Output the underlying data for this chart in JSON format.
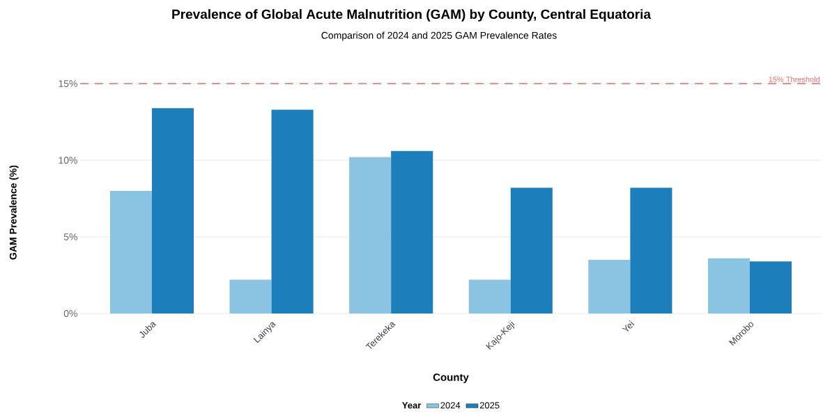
{
  "chart_data": {
    "type": "bar",
    "title": "Prevalence of Global Acute Malnutrition (GAM) by County, Central Equatoria",
    "subtitle": "Comparison of 2024 and 2025 GAM Prevalence Rates",
    "xlabel": "County",
    "ylabel": "GAM Prevalence (%)",
    "legend_title": "Year",
    "categories": [
      "Juba",
      "Lainya",
      "Terekeka",
      "Kajo-Keji",
      "Yei",
      "Morobo"
    ],
    "series": [
      {
        "name": "2024",
        "color": "#8bc3e3",
        "values": [
          8.0,
          2.2,
          10.2,
          2.2,
          3.5,
          3.6
        ]
      },
      {
        "name": "2025",
        "color": "#1c7eba",
        "values": [
          13.4,
          13.3,
          10.6,
          8.2,
          8.2,
          3.4
        ]
      }
    ],
    "ylim": [
      0,
      15
    ],
    "yticks": [
      {
        "value": 0,
        "label": "0%"
      },
      {
        "value": 5,
        "label": "5%"
      },
      {
        "value": 10,
        "label": "10%"
      },
      {
        "value": 15,
        "label": "15%"
      }
    ],
    "ref_lines": [
      {
        "axis": "y",
        "value": 15,
        "label": "15% Threshold",
        "color": "#f06a6a",
        "line_style": "dashed"
      }
    ],
    "grid": "y",
    "legend": "bottom"
  }
}
